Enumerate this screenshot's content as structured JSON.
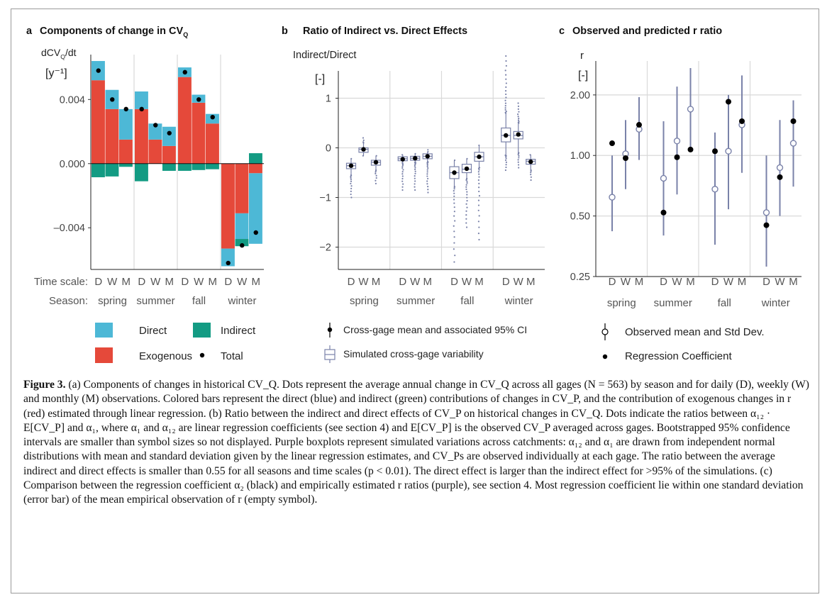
{
  "colors": {
    "direct": "#4db8d6",
    "indirect": "#139b83",
    "exogenous": "#e5493a",
    "total": "#000000",
    "purple": "#7a82a9",
    "grid": "#d9d9d9",
    "box_fill": "#ffffff"
  },
  "panels": {
    "a": {
      "letter": "a",
      "title": "Components of change in CV",
      "title_sub": "Q",
      "ylabel_main": "dCV",
      "ylabel_sub": "Q",
      "ylabel_tail": "/dt",
      "yunit": "[y⁻¹]"
    },
    "b": {
      "letter": "b",
      "title": "Ratio of Indirect vs. Direct Effects",
      "ylabel": "Indirect/Direct",
      "yunit": "[-]"
    },
    "c": {
      "letter": "c",
      "title": "Observed and predicted r ratio",
      "ylabel": "r",
      "yunit": "[-]"
    }
  },
  "axis_labels": {
    "timescale": "Time scale:",
    "season": "Season:"
  },
  "legends": {
    "a": {
      "direct": "Direct",
      "indirect": "Indirect",
      "exogenous": "Exogenous",
      "total": "Total"
    },
    "b": {
      "mean": "Cross-gage mean and associated 95% CI",
      "sim": "Simulated cross-gage variability"
    },
    "c": {
      "obs": "Observed mean and Std Dev.",
      "reg": "Regression Coefficient"
    }
  },
  "caption": {
    "label": "Figure 3.",
    "text": " (a) Components of changes in historical CV_Q. Dots represent the average annual change in CV_Q across all gages (N = 563) by season and for daily (D), weekly (W) and monthly (M) observations. Colored bars represent the direct (blue) and indirect (green) contributions of changes in CV_P, and the contribution of exogenous changes in r (red) estimated through linear regression. (b) Ratio between the indirect and direct effects of CV_P on historical changes in CV_Q. Dots indicate the ratios between α₁₂ · E[CV_P] and α₁, where α₁ and α₁₂ are linear regression coefficients (see section 4) and E[CV_P] is the observed CV_P averaged across gages. Bootstrapped 95% confidence intervals are smaller than symbol sizes so not displayed. Purple boxplots represent simulated variations across catchments: α₁₂ and α₁ are drawn from independent normal distributions with mean and standard deviation given by the linear regression estimates, and CV_Ps are observed individually at each gage. The ratio between the average indirect and direct effects is smaller than 0.55 for all seasons and time scales (p < 0.01). The direct effect is larger than the indirect effect for >95% of the simulations. (c) Comparison between the regression coefficient α₂ (black) and empirically estimated r ratios (purple), see section 4. Most regression coefficient lie within one standard deviation (error bar) of the mean empirical observation of r (empty symbol)."
  },
  "chart_data": [
    {
      "panel": "a",
      "type": "bar",
      "stacked": true,
      "title": "Components of change in CV_Q",
      "ylabel": "dCV_Q/dt [y^-1]",
      "ylim": [
        -0.0066,
        0.0068
      ],
      "yticks": [
        -0.004,
        0.0,
        0.004
      ],
      "ytick_labels": [
        "–0.004",
        "0.000",
        "0.004"
      ],
      "seasons": [
        "spring",
        "summer",
        "fall",
        "winter"
      ],
      "timescales": [
        "D",
        "W",
        "M"
      ],
      "series_order": [
        "exogenous",
        "direct",
        "indirect"
      ],
      "groups": [
        [
          {
            "exogenous": 0.0052,
            "direct": 0.0012,
            "indirect": -0.00085,
            "total": 0.0058
          },
          {
            "exogenous": 0.0034,
            "direct": 0.0012,
            "indirect": -0.0008,
            "total": 0.004
          },
          {
            "exogenous": 0.0015,
            "direct": 0.0019,
            "indirect": -0.0002,
            "total": 0.0034
          }
        ],
        [
          {
            "exogenous": 0.0034,
            "direct": 0.0011,
            "indirect": -0.0011,
            "total": 0.0034
          },
          {
            "exogenous": 0.0015,
            "direct": 0.001,
            "indirect": 0.0,
            "total": 0.0024
          },
          {
            "exogenous": 0.0011,
            "direct": 0.0012,
            "indirect": -0.00045,
            "total": 0.0019
          }
        ],
        [
          {
            "exogenous": 0.0054,
            "direct": 0.0006,
            "indirect": -0.00045,
            "total": 0.0057
          },
          {
            "exogenous": 0.0038,
            "direct": 0.0005,
            "indirect": -0.0004,
            "total": 0.004
          },
          {
            "exogenous": 0.0025,
            "direct": 0.0006,
            "indirect": -0.00035,
            "total": 0.0029
          }
        ],
        [
          {
            "exogenous": -0.0053,
            "direct": -0.0011,
            "indirect": 0.0,
            "total": -0.0062
          },
          {
            "exogenous": -0.0031,
            "direct": -0.0016,
            "indirect": -0.00045,
            "total": -0.0051
          },
          {
            "exogenous": -0.0006,
            "direct": -0.0044,
            "indirect": 0.00065,
            "total": -0.0043
          }
        ]
      ]
    },
    {
      "panel": "b",
      "type": "box",
      "title": "Ratio of Indirect vs. Direct Effects",
      "ylabel": "Indirect/Direct [-]",
      "ylim": [
        -2.45,
        1.55
      ],
      "yticks": [
        -2,
        -1,
        0,
        1
      ],
      "ytick_labels": [
        "−2",
        "−1",
        "0",
        "1"
      ],
      "seasons": [
        "spring",
        "summer",
        "fall",
        "winter"
      ],
      "timescales": [
        "D",
        "W",
        "M"
      ],
      "groups": [
        [
          {
            "q1": -0.42,
            "med": -0.36,
            "q3": -0.31,
            "wlo": -0.55,
            "whi": -0.22,
            "olo": -1.0,
            "ohi": -0.22,
            "mean": -0.36
          },
          {
            "q1": -0.09,
            "med": -0.03,
            "q3": 0.0,
            "wlo": -0.16,
            "whi": 0.1,
            "olo": -0.18,
            "ohi": 0.2,
            "mean": -0.03
          },
          {
            "q1": -0.35,
            "med": -0.29,
            "q3": -0.25,
            "wlo": -0.45,
            "whi": -0.16,
            "olo": -0.72,
            "ohi": -0.16,
            "mean": -0.29
          }
        ],
        [
          {
            "q1": -0.26,
            "med": -0.22,
            "q3": -0.18,
            "wlo": -0.3,
            "whi": -0.14,
            "olo": -0.85,
            "ohi": -0.14,
            "mean": -0.23
          },
          {
            "q1": -0.25,
            "med": -0.21,
            "q3": -0.17,
            "wlo": -0.29,
            "whi": -0.12,
            "olo": -0.85,
            "ohi": -0.12,
            "mean": -0.21
          },
          {
            "q1": -0.22,
            "med": -0.17,
            "q3": -0.12,
            "wlo": -0.28,
            "whi": -0.08,
            "olo": -0.9,
            "ohi": -0.04,
            "mean": -0.17
          }
        ],
        [
          {
            "q1": -0.62,
            "med": -0.5,
            "q3": -0.38,
            "wlo": -0.78,
            "whi": -0.25,
            "olo": -2.3,
            "ohi": -0.25,
            "mean": -0.5
          },
          {
            "q1": -0.5,
            "med": -0.43,
            "q3": -0.33,
            "wlo": -0.62,
            "whi": -0.22,
            "olo": -1.6,
            "ohi": -0.22,
            "mean": -0.42
          },
          {
            "q1": -0.27,
            "med": -0.18,
            "q3": -0.09,
            "wlo": -0.4,
            "whi": 0.05,
            "olo": -1.85,
            "ohi": 0.05,
            "mean": -0.18
          }
        ],
        [
          {
            "q1": 0.12,
            "med": 0.25,
            "q3": 0.4,
            "wlo": -0.15,
            "whi": 0.7,
            "olo": -0.45,
            "ohi": 1.85,
            "mean": 0.25
          },
          {
            "q1": 0.18,
            "med": 0.25,
            "q3": 0.33,
            "wlo": -0.1,
            "whi": 0.5,
            "olo": -0.4,
            "ohi": 0.9,
            "mean": 0.27
          },
          {
            "q1": -0.33,
            "med": -0.27,
            "q3": -0.23,
            "wlo": -0.45,
            "whi": -0.14,
            "olo": -0.65,
            "ohi": -0.14,
            "mean": -0.28
          }
        ]
      ]
    },
    {
      "panel": "c",
      "type": "scatter",
      "log_scale": true,
      "title": "Observed and predicted r ratio",
      "ylabel": "r [-]",
      "ylim": [
        0.25,
        2.95
      ],
      "yticks": [
        0.25,
        0.5,
        1.0,
        2.0
      ],
      "ytick_labels": [
        "0.25",
        "0.50",
        "1.00",
        "2.00"
      ],
      "seasons": [
        "spring",
        "summer",
        "fall",
        "winter"
      ],
      "timescales": [
        "D",
        "W",
        "M"
      ],
      "groups": [
        [
          {
            "obs": 0.62,
            "lo": 0.42,
            "hi": 1.0,
            "reg": 1.15
          },
          {
            "obs": 1.02,
            "lo": 0.68,
            "hi": 1.5,
            "reg": 0.97
          },
          {
            "obs": 1.35,
            "lo": 0.95,
            "hi": 1.95,
            "reg": 1.42
          }
        ],
        [
          {
            "obs": 0.77,
            "lo": 0.4,
            "hi": 1.48,
            "reg": 0.52
          },
          {
            "obs": 1.18,
            "lo": 0.64,
            "hi": 2.2,
            "reg": 0.98
          },
          {
            "obs": 1.7,
            "lo": 1.05,
            "hi": 2.72,
            "reg": 1.07
          }
        ],
        [
          {
            "obs": 0.68,
            "lo": 0.36,
            "hi": 1.3,
            "reg": 1.05
          },
          {
            "obs": 1.05,
            "lo": 0.54,
            "hi": 2.0,
            "reg": 1.85
          },
          {
            "obs": 1.42,
            "lo": 0.82,
            "hi": 2.5,
            "reg": 1.48
          }
        ],
        [
          {
            "obs": 0.52,
            "lo": 0.28,
            "hi": 1.0,
            "reg": 0.45
          },
          {
            "obs": 0.87,
            "lo": 0.5,
            "hi": 1.5,
            "reg": 0.78
          },
          {
            "obs": 1.15,
            "lo": 0.7,
            "hi": 1.88,
            "reg": 1.48
          }
        ]
      ]
    }
  ]
}
